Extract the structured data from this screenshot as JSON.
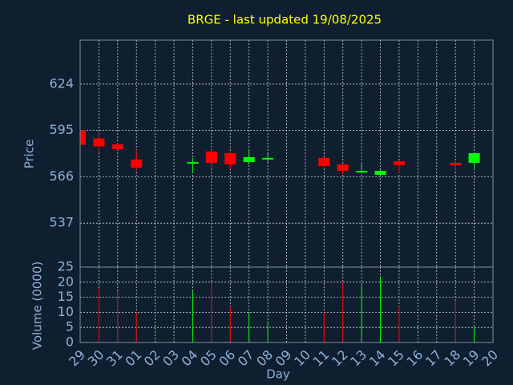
{
  "chart_data": {
    "type": "candlestick",
    "title": "BRGE - last updated 19/08/2025",
    "x_label": "Day",
    "y_label": "Price",
    "volume_label": "Volume (0000)",
    "categories": [
      "29",
      "30",
      "31",
      "01",
      "02",
      "03",
      "04",
      "05",
      "06",
      "07",
      "08",
      "09",
      "10",
      "11",
      "12",
      "13",
      "14",
      "15",
      "16",
      "17",
      "18",
      "19",
      "20"
    ],
    "open": [
      595,
      590,
      586.3,
      576.8,
      null,
      null,
      574.2,
      581.8,
      580.8,
      575.2,
      576.8,
      null,
      null,
      577.8,
      573.7,
      568.7,
      567.2,
      575.7,
      null,
      null,
      574.7,
      574.7,
      null
    ],
    "high": [
      595,
      593,
      587,
      582.8,
      null,
      null,
      577.8,
      582.8,
      581.8,
      582.8,
      580.3,
      null,
      null,
      578.3,
      574.2,
      574.2,
      570.2,
      576.2,
      null,
      null,
      575.7,
      580.8,
      null
    ],
    "low": [
      586,
      581,
      583,
      569.7,
      null,
      null,
      568.7,
      571.7,
      570.7,
      573.7,
      575.2,
      null,
      null,
      572.2,
      567.7,
      568.2,
      566.7,
      568.2,
      null,
      null,
      569.7,
      570.7,
      null
    ],
    "close": [
      586,
      585,
      583.3,
      571.7,
      null,
      null,
      575.2,
      574.7,
      573.7,
      578.3,
      577.8,
      null,
      null,
      572.7,
      569.7,
      569.7,
      569.7,
      573.2,
      null,
      null,
      573.2,
      580.8,
      null
    ],
    "volume": [
      null,
      18,
      17,
      10,
      null,
      null,
      17,
      20,
      12,
      10,
      7,
      null,
      null,
      10,
      20,
      19,
      22,
      12,
      null,
      null,
      14,
      5,
      null
    ],
    "up_color": "#00ff00",
    "down_color": "#ff0000",
    "ylim": [
      509.5,
      651.5
    ],
    "yticks": [
      537,
      566,
      595,
      624
    ],
    "volume_ylim": [
      0,
      25
    ],
    "volume_yticks": [
      0,
      5,
      10,
      15,
      20,
      25
    ],
    "grid": true
  }
}
